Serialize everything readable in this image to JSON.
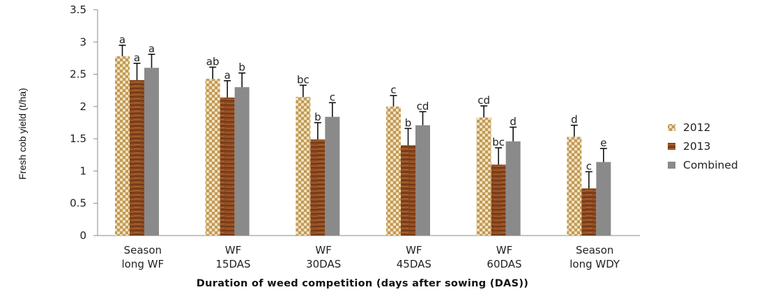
{
  "chart_data": {
    "type": "bar",
    "title": "",
    "xlabel": "Duration of weed competition (days after sowing (DAS))",
    "ylabel": "Fresh cob yield (t/ha)",
    "ylim": [
      0,
      3.5
    ],
    "yticks": [
      "0",
      "0.5",
      "1",
      "1.5",
      "2",
      "2.5",
      "3",
      "3.5"
    ],
    "categories": [
      [
        "Season",
        "long WF"
      ],
      [
        "WF",
        "15DAS"
      ],
      [
        "WF",
        "30DAS"
      ],
      [
        "WF",
        "45DAS"
      ],
      [
        "WF",
        "60DAS"
      ],
      [
        "Season",
        "long WDY"
      ]
    ],
    "series": [
      {
        "name": "2012",
        "values": [
          2.78,
          2.43,
          2.15,
          2.0,
          1.83,
          1.53
        ],
        "errors": [
          0.17,
          0.18,
          0.18,
          0.17,
          0.18,
          0.18
        ],
        "letters": [
          "a",
          "ab",
          "bc",
          "c",
          "cd",
          "d"
        ]
      },
      {
        "name": "2013",
        "values": [
          2.41,
          2.14,
          1.49,
          1.4,
          1.1,
          0.73
        ],
        "errors": [
          0.26,
          0.26,
          0.26,
          0.26,
          0.26,
          0.26
        ],
        "letters": [
          "a",
          "a",
          "b",
          "b",
          "bc",
          "c"
        ]
      },
      {
        "name": "Combined",
        "values": [
          2.6,
          2.3,
          1.84,
          1.71,
          1.46,
          1.14
        ],
        "errors": [
          0.21,
          0.22,
          0.22,
          0.21,
          0.22,
          0.21
        ],
        "letters": [
          "a",
          "b",
          "c",
          "cd",
          "d",
          "e"
        ]
      }
    ],
    "legend_position": "right",
    "grid": false
  }
}
